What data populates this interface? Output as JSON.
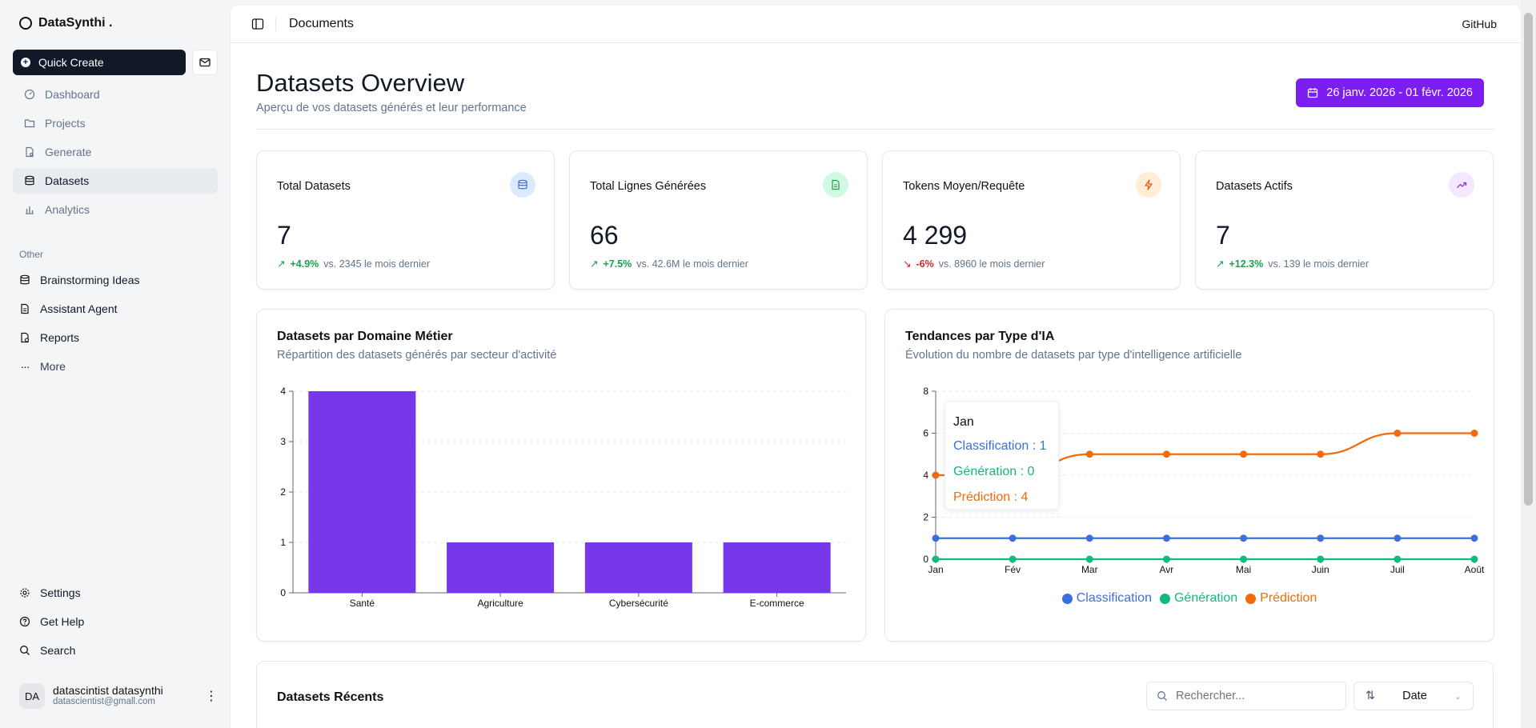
{
  "sidebar": {
    "brand": "DataSynthi .",
    "quick_create": "Quick Create",
    "nav": [
      {
        "label": "Dashboard",
        "icon": "dashboard-icon"
      },
      {
        "label": "Projects",
        "icon": "folder-icon"
      },
      {
        "label": "Generate",
        "icon": "file-gear-icon"
      },
      {
        "label": "Datasets",
        "icon": "database-icon"
      },
      {
        "label": "Analytics",
        "icon": "bar-chart-icon"
      }
    ],
    "other_label": "Other",
    "other": [
      {
        "label": "Brainstorming Ideas",
        "icon": "database-icon"
      },
      {
        "label": "Assistant Agent",
        "icon": "file-icon"
      },
      {
        "label": "Reports",
        "icon": "report-icon"
      },
      {
        "label": "More",
        "icon": "more-icon"
      }
    ],
    "bottom": [
      {
        "label": "Settings",
        "icon": "gear-icon"
      },
      {
        "label": "Get Help",
        "icon": "help-icon"
      },
      {
        "label": "Search",
        "icon": "search-icon"
      }
    ],
    "user": {
      "initials": "DA",
      "name": "datascintist datasynthi",
      "email": "datascientist@gmall.com"
    }
  },
  "topbar": {
    "title": "Documents",
    "github": "GitHub"
  },
  "header": {
    "title": "Datasets Overview",
    "subtitle": "Aperçu de vos datasets générés et leur performance",
    "date_range": "26 janv. 2026 - 01 févr. 2026"
  },
  "stats": [
    {
      "label": "Total Datasets",
      "value": "7",
      "delta": "+4.9%",
      "vs": "vs. 2345 le mois dernier",
      "trend": "up",
      "badge_bg": "#dbeafe",
      "badge_color": "#3b6fe0"
    },
    {
      "label": "Total Lignes Générées",
      "value": "66",
      "delta": "+7.5%",
      "vs": "vs. 42.6M le mois dernier",
      "trend": "up",
      "badge_bg": "#d1fae5",
      "badge_color": "#16a34a"
    },
    {
      "label": "Tokens Moyen/Requête",
      "value": "4 299",
      "delta": "-6%",
      "vs": "vs. 8960 le mois dernier",
      "trend": "down",
      "badge_bg": "#ffedd5",
      "badge_color": "#ea580c"
    },
    {
      "label": "Datasets Actifs",
      "value": "7",
      "delta": "+12.3%",
      "vs": "vs. 139 le mois dernier",
      "trend": "up",
      "badge_bg": "#f3e8ff",
      "badge_color": "#9333ea"
    }
  ],
  "bar_card": {
    "title": "Datasets par Domaine Métier",
    "subtitle": "Répartition des datasets générés par secteur d'activité"
  },
  "line_card": {
    "title": "Tendances par Type d'IA",
    "subtitle": "Évolution du nombre de datasets par type d'intelligence artificielle",
    "tooltip": {
      "month": "Jan",
      "lines": [
        "Classification : 1",
        "Génération : 0",
        "Prédiction : 4"
      ]
    }
  },
  "chart_data": [
    {
      "type": "bar",
      "categories": [
        "Santé",
        "Agriculture",
        "Cybersécurité",
        "E-commerce"
      ],
      "values": [
        4,
        1,
        1,
        1
      ],
      "ylim": [
        0,
        4
      ],
      "yticks": [
        0,
        1,
        2,
        3,
        4
      ],
      "color": "#7638e8",
      "grid": true
    },
    {
      "type": "line",
      "x": [
        "Jan",
        "Fév",
        "Mar",
        "Avr",
        "Mai",
        "Juin",
        "Juil",
        "Août"
      ],
      "ylim": [
        0,
        8
      ],
      "yticks": [
        0,
        2,
        4,
        6,
        8
      ],
      "grid": true,
      "legend": "bottom",
      "series": [
        {
          "name": "Classification",
          "values": [
            1,
            1,
            1,
            1,
            1,
            1,
            1,
            1
          ],
          "color": "#3b6fe0"
        },
        {
          "name": "Génération",
          "values": [
            0,
            0,
            0,
            0,
            0,
            0,
            0,
            0
          ],
          "color": "#10b981"
        },
        {
          "name": "Prédiction",
          "values": [
            4,
            4,
            5,
            5,
            5,
            5,
            6,
            6
          ],
          "color": "#f26b0a"
        }
      ]
    }
  ],
  "recent": {
    "title": "Datasets Récents",
    "search_placeholder": "Rechercher...",
    "sort_label": "Date"
  }
}
